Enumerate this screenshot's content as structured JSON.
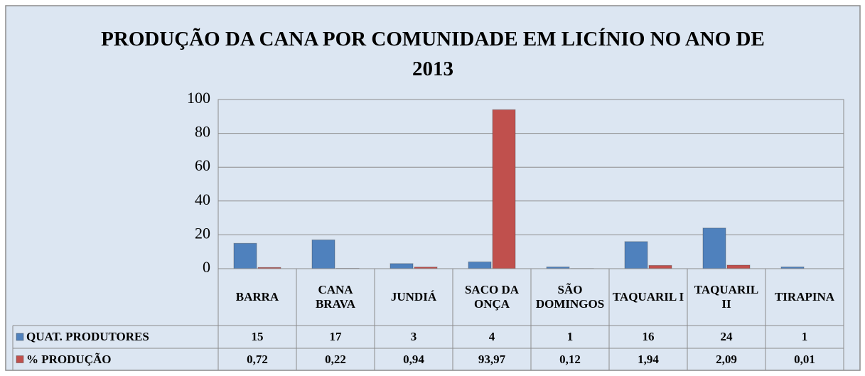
{
  "chart_data": {
    "type": "bar",
    "title": "PRODUÇÃO DA CANA POR COMUNIDADE EM LICÍNIO NO ANO DE 2013",
    "categories": [
      "BARRA",
      "CANA BRAVA",
      "JUNDIÁ",
      "SACO DA ONÇA",
      "SÃO DOMINGOS",
      "TAQUARIL I",
      "TAQUARIL II",
      "TIRAPINA"
    ],
    "series": [
      {
        "name": "QUAT. PRODUTORES",
        "color": "#4f81bd",
        "values": [
          15,
          17,
          3,
          4,
          1,
          16,
          24,
          1
        ]
      },
      {
        "name": "% PRODUÇÃO",
        "color": "#c0504d",
        "values": [
          0.72,
          0.22,
          0.94,
          93.97,
          0.12,
          1.94,
          2.09,
          0.01
        ],
        "value_labels": [
          "0,72",
          "0,22",
          "0,94",
          "93,97",
          "0,12",
          "1,94",
          "2,09",
          "0,01"
        ]
      }
    ],
    "ylim": [
      0,
      100
    ],
    "yticks": [
      0,
      20,
      40,
      60,
      80,
      100
    ],
    "grid": true,
    "legend": "table"
  }
}
